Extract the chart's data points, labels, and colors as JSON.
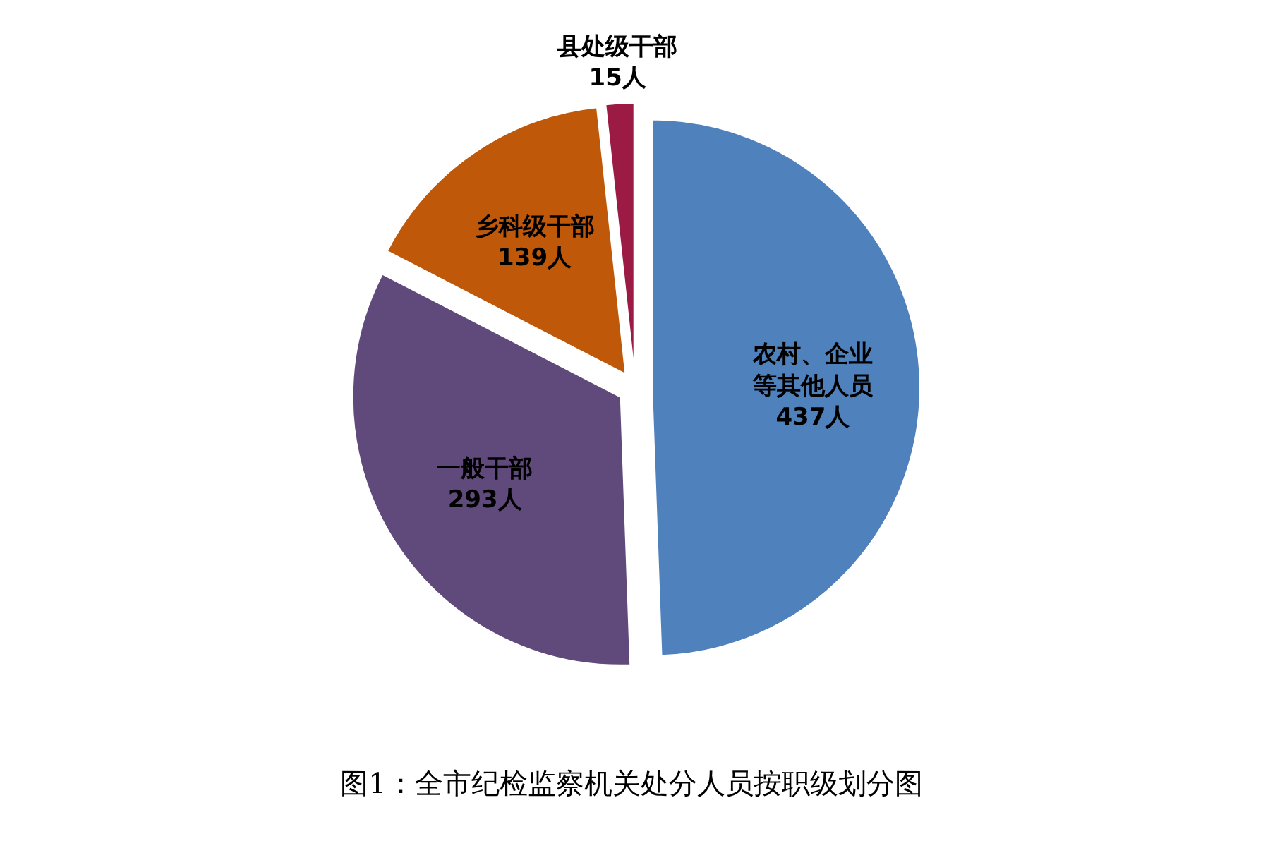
{
  "chart_data": {
    "type": "pie",
    "title": "图1：全市纪检监察机关处分人员按职级划分图",
    "categories": [
      "农村、企业等其他人员",
      "一般干部",
      "乡科级干部",
      "县处级干部"
    ],
    "values": [
      437,
      293,
      139,
      15
    ],
    "value_labels": [
      "437人",
      "293人",
      "139人",
      "15人"
    ],
    "colors": [
      "#4f81bd",
      "#604a7b",
      "#c0580a",
      "#9b1b45"
    ]
  }
}
